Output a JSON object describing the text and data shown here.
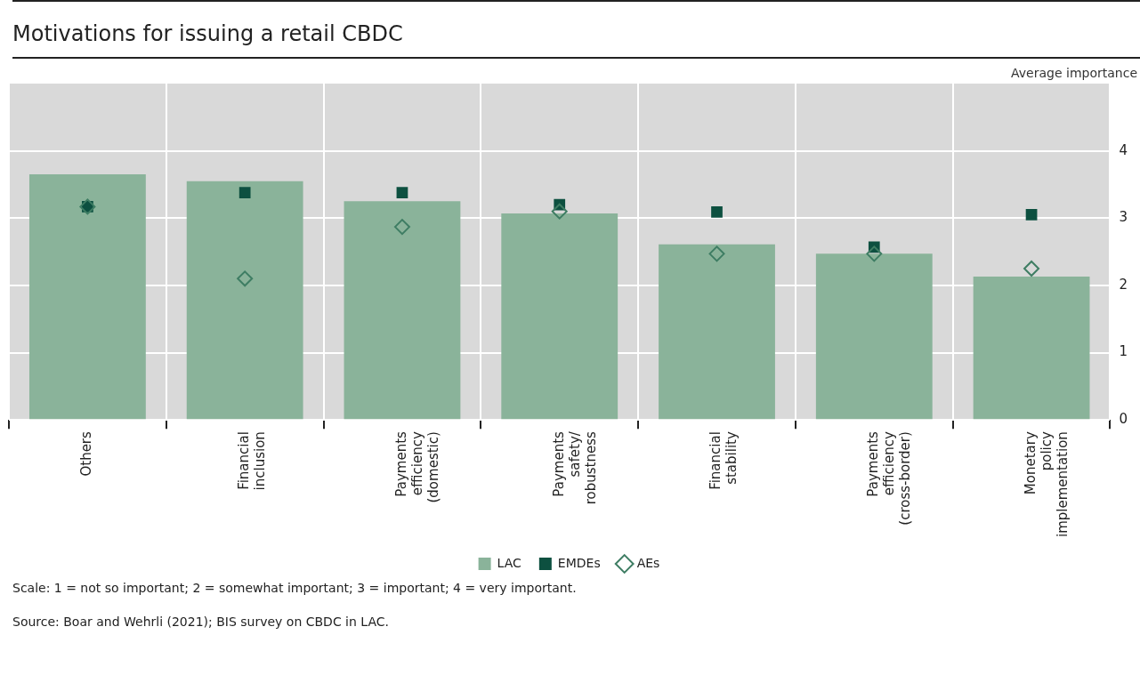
{
  "chart_data": {
    "type": "bar",
    "title": "Motivations for issuing a retail CBDC",
    "ylabel": "Average importance",
    "categories": [
      "Others",
      "Financial inclusion",
      "Payments efficiency (domestic)",
      "Payments safety/ robustness",
      "Financial stability",
      "Payments efficiency (cross-border)",
      "Monetary policy implementation"
    ],
    "series": [
      {
        "name": "LAC",
        "color": "#8ab39a",
        "values": [
          3.65,
          3.55,
          3.25,
          3.07,
          2.61,
          2.47,
          2.13
        ]
      },
      {
        "name": "EMDEs",
        "type": "scatter",
        "marker": "square",
        "color": "#0d5040",
        "x": [
          "Others",
          "Financial inclusion",
          "Payments efficiency (domestic)",
          "Payments safety/ robustness",
          "Financial stability",
          "Payments efficiency (cross-border)",
          "Monetary policy implementation"
        ],
        "values": [
          3.17,
          3.38,
          3.38,
          3.2,
          3.09,
          2.57,
          3.05
        ]
      },
      {
        "name": "AEs",
        "type": "scatter",
        "marker": "diamond",
        "color": "#3e7d63",
        "x": [
          "Others",
          "Financial inclusion",
          "Payments efficiency (domestic)",
          "Payments safety/ robustness",
          "Financial stability",
          "Payments efficiency (cross-border)",
          "Monetary policy implementation"
        ],
        "values": [
          3.17,
          2.1,
          2.87,
          3.1,
          2.47,
          2.47,
          2.25
        ]
      }
    ],
    "ylim": [
      0,
      5
    ],
    "yticks": [
      0,
      1,
      2,
      3,
      4
    ],
    "grid": true,
    "legend": "bottom",
    "annotations": [
      "Scale: 1 = not so important; 2 = somewhat important; 3 = important; 4 = very important.",
      "Source: Boar and Wehrli (2021); BIS survey on CBDC in LAC."
    ]
  }
}
